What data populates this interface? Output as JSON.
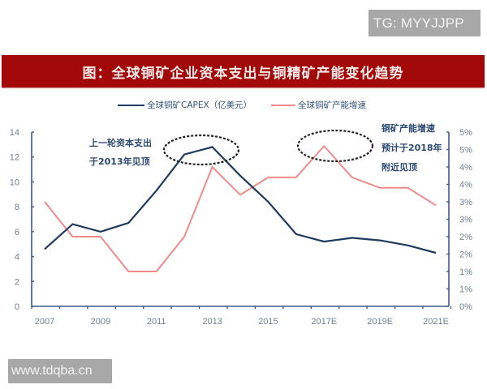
{
  "watermarks": {
    "top_right": "TG: MYYJJPP",
    "bottom_left": "www.tdqba.cn"
  },
  "title": "图：全球铜矿企业资本支出与铜精矿产能变化趋势",
  "legend": [
    {
      "label": "全球铜矿CAPEX（亿美元）",
      "color": "#1f3a5f"
    },
    {
      "label": "全球铜矿产能增速",
      "color": "#f08a8a"
    }
  ],
  "annotations": [
    {
      "lines": [
        "上一轮资本支出",
        "于2013年见顶"
      ]
    },
    {
      "lines": [
        "铜矿产能增速",
        "预计于2018年",
        "附近见顶"
      ]
    }
  ],
  "axes": {
    "left_ticks": [
      "0",
      "2",
      "4",
      "6",
      "8",
      "10",
      "12",
      "14"
    ],
    "right_ticks": [
      "0%",
      "1%",
      "1%",
      "2%",
      "2%",
      "3%",
      "3%",
      "4%",
      "4%",
      "5%",
      "5%"
    ],
    "x_labels": [
      "2007",
      "2009",
      "2011",
      "2013",
      "2015",
      "2017E",
      "2019E",
      "2021E"
    ]
  },
  "chart_data": {
    "type": "line",
    "title": "图：全球铜矿企业资本支出与铜精矿产能变化趋势",
    "xlabel": "",
    "ylabel": "全球铜矿CAPEX（亿美元）",
    "y2label": "全球铜矿产能增速",
    "x": [
      "2007",
      "2008",
      "2009",
      "2010",
      "2011",
      "2012",
      "2013",
      "2014",
      "2015",
      "2016",
      "2017E",
      "2018E",
      "2019E",
      "2020E",
      "2021E"
    ],
    "series": [
      {
        "name": "全球铜矿CAPEX（亿美元）",
        "axis": "left",
        "color": "#1f3a5f",
        "values": [
          4.6,
          6.6,
          6.0,
          6.7,
          9.3,
          12.2,
          12.8,
          10.5,
          8.4,
          5.8,
          5.2,
          5.5,
          5.3,
          4.9,
          4.3
        ]
      },
      {
        "name": "全球铜矿产能增速",
        "axis": "right",
        "color": "#f08a8a",
        "unit": "%",
        "values": [
          3.0,
          2.0,
          2.0,
          1.0,
          1.0,
          2.0,
          4.0,
          3.2,
          3.7,
          3.7,
          4.6,
          3.7,
          3.4,
          3.4,
          2.9
        ]
      }
    ],
    "ylim": [
      0,
      14
    ],
    "y2lim": [
      0,
      5
    ],
    "grid": false,
    "legend_position": "top",
    "annotations": [
      {
        "text": "上一轮资本支出于2013年见顶",
        "target": "2013 CAPEX peak (dashed ellipse)"
      },
      {
        "text": "铜矿产能增速预计于2018年附近见顶",
        "target": "2017E growth peak (dashed ellipse)"
      }
    ]
  }
}
